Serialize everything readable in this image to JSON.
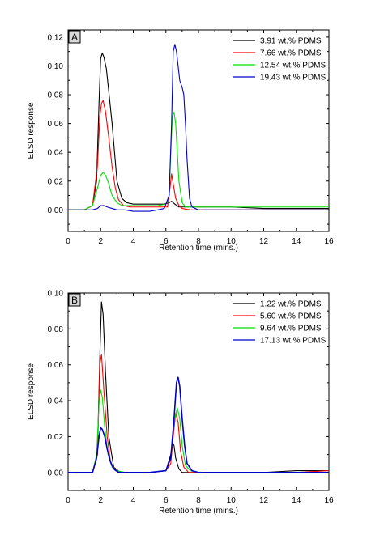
{
  "chart_data": [
    {
      "type": "line",
      "panel_label": "A",
      "xlabel": "Retention time (mins.)",
      "ylabel": "ELSD response",
      "xlim": [
        0,
        16
      ],
      "ylim": [
        -0.015,
        0.125
      ],
      "x_ticks": [
        "0",
        "2",
        "4",
        "6",
        "8",
        "10",
        "12",
        "14",
        "16"
      ],
      "y_ticks": [
        "0.00",
        "0.02",
        "0.04",
        "0.06",
        "0.08",
        "0.10",
        "0.12"
      ],
      "legend_position": "top-right",
      "series": [
        {
          "name": "3.91 wt.% PDMS",
          "color": "#000000",
          "x": [
            0,
            1.0,
            1.5,
            1.75,
            1.9,
            2.0,
            2.1,
            2.2,
            2.35,
            2.5,
            2.7,
            2.85,
            3.0,
            3.3,
            3.6,
            4,
            5,
            5.9,
            6.2,
            6.35,
            6.55,
            6.8,
            7.2,
            8,
            10,
            12,
            14,
            16
          ],
          "y": [
            0.0,
            0.0,
            0.003,
            0.02,
            0.075,
            0.105,
            0.109,
            0.106,
            0.098,
            0.082,
            0.06,
            0.04,
            0.02,
            0.008,
            0.005,
            0.004,
            0.004,
            0.004,
            0.005,
            0.006,
            0.004,
            0.002,
            0.002,
            0.002,
            0.002,
            0.001,
            0.001,
            0.001
          ]
        },
        {
          "name": "7.66 wt.% PDMS",
          "color": "#ff0000",
          "x": [
            0,
            1.0,
            1.5,
            1.8,
            1.95,
            2.05,
            2.15,
            2.3,
            2.5,
            2.7,
            2.9,
            3.1,
            3.4,
            3.8,
            4.5,
            5.5,
            6.1,
            6.25,
            6.35,
            6.45,
            6.6,
            6.8,
            7.0,
            7.5,
            8,
            10,
            12,
            14,
            16
          ],
          "y": [
            0.0,
            0.0,
            0.003,
            0.03,
            0.065,
            0.074,
            0.076,
            0.068,
            0.05,
            0.03,
            0.015,
            0.007,
            0.003,
            0.002,
            0.002,
            0.002,
            0.002,
            0.015,
            0.025,
            0.018,
            0.008,
            0.003,
            0.001,
            0.0,
            0.0,
            0.0,
            0.0,
            0.0,
            0.0
          ]
        },
        {
          "name": "12.54 wt.% PDMS",
          "color": "#00e000",
          "x": [
            0,
            1.0,
            1.5,
            1.8,
            2.0,
            2.15,
            2.3,
            2.5,
            2.7,
            3.0,
            3.3,
            3.8,
            4.5,
            5.0,
            5.5,
            6.0,
            6.2,
            6.3,
            6.4,
            6.5,
            6.6,
            6.7,
            6.8,
            7.0,
            7.2,
            7.5,
            8,
            10,
            12,
            14,
            16
          ],
          "y": [
            0.0,
            0.0,
            0.003,
            0.015,
            0.024,
            0.026,
            0.024,
            0.018,
            0.01,
            0.005,
            0.003,
            0.003,
            0.003,
            0.003,
            0.003,
            0.004,
            0.01,
            0.04,
            0.065,
            0.068,
            0.06,
            0.04,
            0.02,
            0.005,
            0.002,
            0.002,
            0.002,
            0.002,
            0.002,
            0.002,
            0.002
          ]
        },
        {
          "name": "19.43 wt.% PDMS",
          "color": "#0000cc",
          "x": [
            0,
            1.0,
            1.5,
            1.8,
            2.0,
            2.2,
            2.4,
            2.7,
            3.0,
            3.5,
            4,
            5,
            5.5,
            5.9,
            6.2,
            6.35,
            6.45,
            6.55,
            6.65,
            6.75,
            6.85,
            7.0,
            7.1,
            7.2,
            7.3,
            7.45,
            7.6,
            8,
            10,
            12,
            14,
            16
          ],
          "y": [
            0.0,
            0.0,
            0.0,
            0.001,
            0.003,
            0.003,
            0.002,
            0.001,
            0.0,
            0.0,
            -0.001,
            -0.001,
            0.0,
            0.001,
            0.01,
            0.06,
            0.11,
            0.115,
            0.11,
            0.1,
            0.09,
            0.085,
            0.08,
            0.06,
            0.035,
            0.008,
            0.002,
            0.0,
            0.0,
            0.0,
            0.0,
            0.0
          ]
        }
      ]
    },
    {
      "type": "line",
      "panel_label": "B",
      "xlabel": "Retention time (mins.)",
      "ylabel": "ELSD response",
      "xlim": [
        0,
        16
      ],
      "ylim": [
        -0.01,
        0.1
      ],
      "x_ticks": [
        "0",
        "2",
        "4",
        "6",
        "8",
        "10",
        "12",
        "14",
        "16"
      ],
      "y_ticks": [
        "0.00",
        "0.02",
        "0.04",
        "0.06",
        "0.08",
        "0.10"
      ],
      "legend_position": "top-right",
      "series": [
        {
          "name": "1.22 wt.% PDMS",
          "color": "#000000",
          "x": [
            0,
            1.5,
            1.8,
            1.95,
            2.05,
            2.15,
            2.3,
            2.5,
            2.8,
            3.2,
            4,
            5,
            6.0,
            6.3,
            6.4,
            6.5,
            6.6,
            6.8,
            7.0,
            7.5,
            8,
            10,
            12,
            14,
            16
          ],
          "y": [
            0.0,
            0.0,
            0.01,
            0.065,
            0.095,
            0.088,
            0.055,
            0.02,
            0.003,
            0.0,
            0.0,
            0.0,
            0.001,
            0.01,
            0.017,
            0.015,
            0.008,
            0.002,
            0.0,
            0.0,
            0.0,
            0.0,
            0.0,
            0.001,
            0.001
          ]
        },
        {
          "name": "5.60 wt.% PDMS",
          "color": "#ff0000",
          "x": [
            0,
            1.5,
            1.8,
            1.95,
            2.05,
            2.2,
            2.4,
            2.6,
            2.9,
            3.3,
            4,
            5,
            6.0,
            6.3,
            6.45,
            6.6,
            6.75,
            6.9,
            7.1,
            7.4,
            8,
            10,
            12,
            14,
            16
          ],
          "y": [
            0.0,
            0.0,
            0.01,
            0.06,
            0.066,
            0.045,
            0.02,
            0.006,
            0.001,
            0.0,
            0.0,
            0.0,
            0.001,
            0.005,
            0.02,
            0.033,
            0.028,
            0.012,
            0.003,
            0.0,
            0.0,
            0.0,
            0.0,
            0.0,
            0.001
          ]
        },
        {
          "name": "9.64 wt.% PDMS",
          "color": "#00e000",
          "x": [
            0,
            1.5,
            1.75,
            1.9,
            2.0,
            2.1,
            2.25,
            2.45,
            2.7,
            3.0,
            3.5,
            4,
            5,
            6.0,
            6.3,
            6.5,
            6.7,
            6.85,
            7.0,
            7.2,
            7.5,
            8,
            10,
            12,
            14,
            16
          ],
          "y": [
            0.0,
            0.0,
            0.01,
            0.038,
            0.046,
            0.042,
            0.025,
            0.01,
            0.003,
            0.001,
            0.0,
            0.0,
            0.0,
            0.001,
            0.008,
            0.028,
            0.036,
            0.03,
            0.015,
            0.004,
            0.001,
            0.0,
            0.0,
            0.0,
            0.0,
            0.0
          ]
        },
        {
          "name": "17.13 wt.% PDMS",
          "color": "#0000cc",
          "x": [
            0,
            1.5,
            1.75,
            1.9,
            2.0,
            2.1,
            2.25,
            2.4,
            2.6,
            2.8,
            3.1,
            3.5,
            4,
            5,
            6.0,
            6.3,
            6.5,
            6.65,
            6.75,
            6.85,
            7.0,
            7.15,
            7.3,
            7.6,
            8,
            10,
            12,
            14,
            16
          ],
          "y": [
            0.0,
            0.0,
            0.008,
            0.02,
            0.025,
            0.024,
            0.02,
            0.013,
            0.006,
            0.002,
            0.0,
            0.0,
            0.0,
            0.0,
            0.001,
            0.008,
            0.03,
            0.05,
            0.053,
            0.048,
            0.03,
            0.015,
            0.005,
            0.001,
            0.0,
            0.0,
            0.0,
            0.0,
            0.0
          ]
        }
      ]
    }
  ]
}
